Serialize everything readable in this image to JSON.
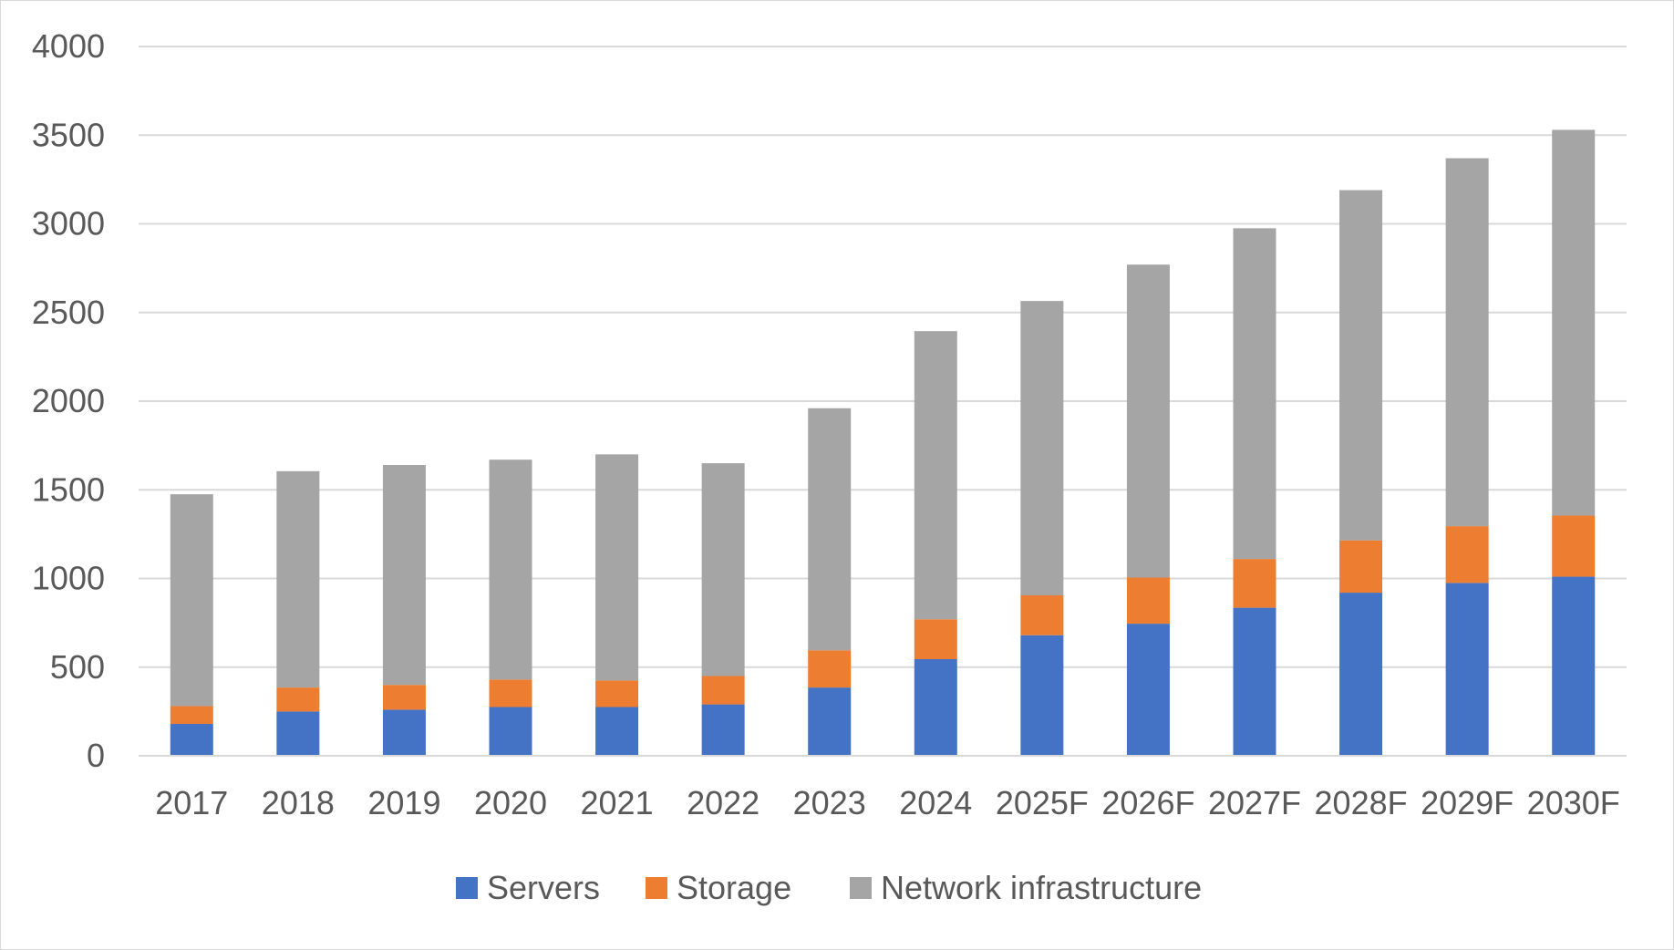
{
  "chart_data": {
    "type": "bar",
    "stacked": true,
    "title": "",
    "xlabel": "",
    "ylabel": "",
    "ylim": [
      0,
      4000
    ],
    "y_ticks": [
      0,
      500,
      1000,
      1500,
      2000,
      2500,
      3000,
      3500,
      4000
    ],
    "grid": true,
    "legend_position": "bottom",
    "categories": [
      "2017",
      "2018",
      "2019",
      "2020",
      "2021",
      "2022",
      "2023",
      "2024",
      "2025F",
      "2026F",
      "2027F",
      "2028F",
      "2029F",
      "2030F"
    ],
    "series": [
      {
        "name": "Servers",
        "color": "#4472c4",
        "values": [
          180,
          250,
          260,
          275,
          275,
          290,
          385,
          545,
          680,
          745,
          835,
          920,
          975,
          1010
        ]
      },
      {
        "name": "Storage",
        "color": "#ed7d31",
        "values": [
          100,
          135,
          140,
          155,
          150,
          160,
          210,
          225,
          225,
          260,
          275,
          295,
          320,
          345
        ]
      },
      {
        "name": "Network infrastructure",
        "color": "#a5a5a5",
        "values": [
          1195,
          1220,
          1240,
          1240,
          1275,
          1200,
          1365,
          1625,
          1660,
          1765,
          1865,
          1975,
          2075,
          2175
        ]
      }
    ]
  }
}
